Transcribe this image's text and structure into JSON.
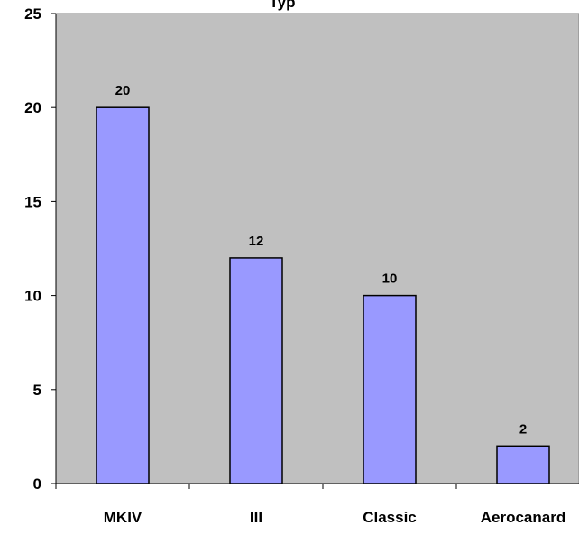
{
  "chart_data": {
    "type": "bar",
    "title": "Typ",
    "xlabel": "",
    "ylabel": "",
    "categories": [
      "MKIV",
      "III",
      "Classic",
      "Aerocanard"
    ],
    "values": [
      20,
      12,
      10,
      2
    ],
    "ylim": [
      0,
      25
    ],
    "yticks": [
      0,
      5,
      10,
      15,
      20,
      25
    ],
    "grid": false,
    "legend": "none",
    "data_labels": true,
    "colors": {
      "plot_background": "#c0c0c0",
      "bar_fill": "#9999ff",
      "bar_stroke": "#000000",
      "text": "#000000"
    }
  }
}
